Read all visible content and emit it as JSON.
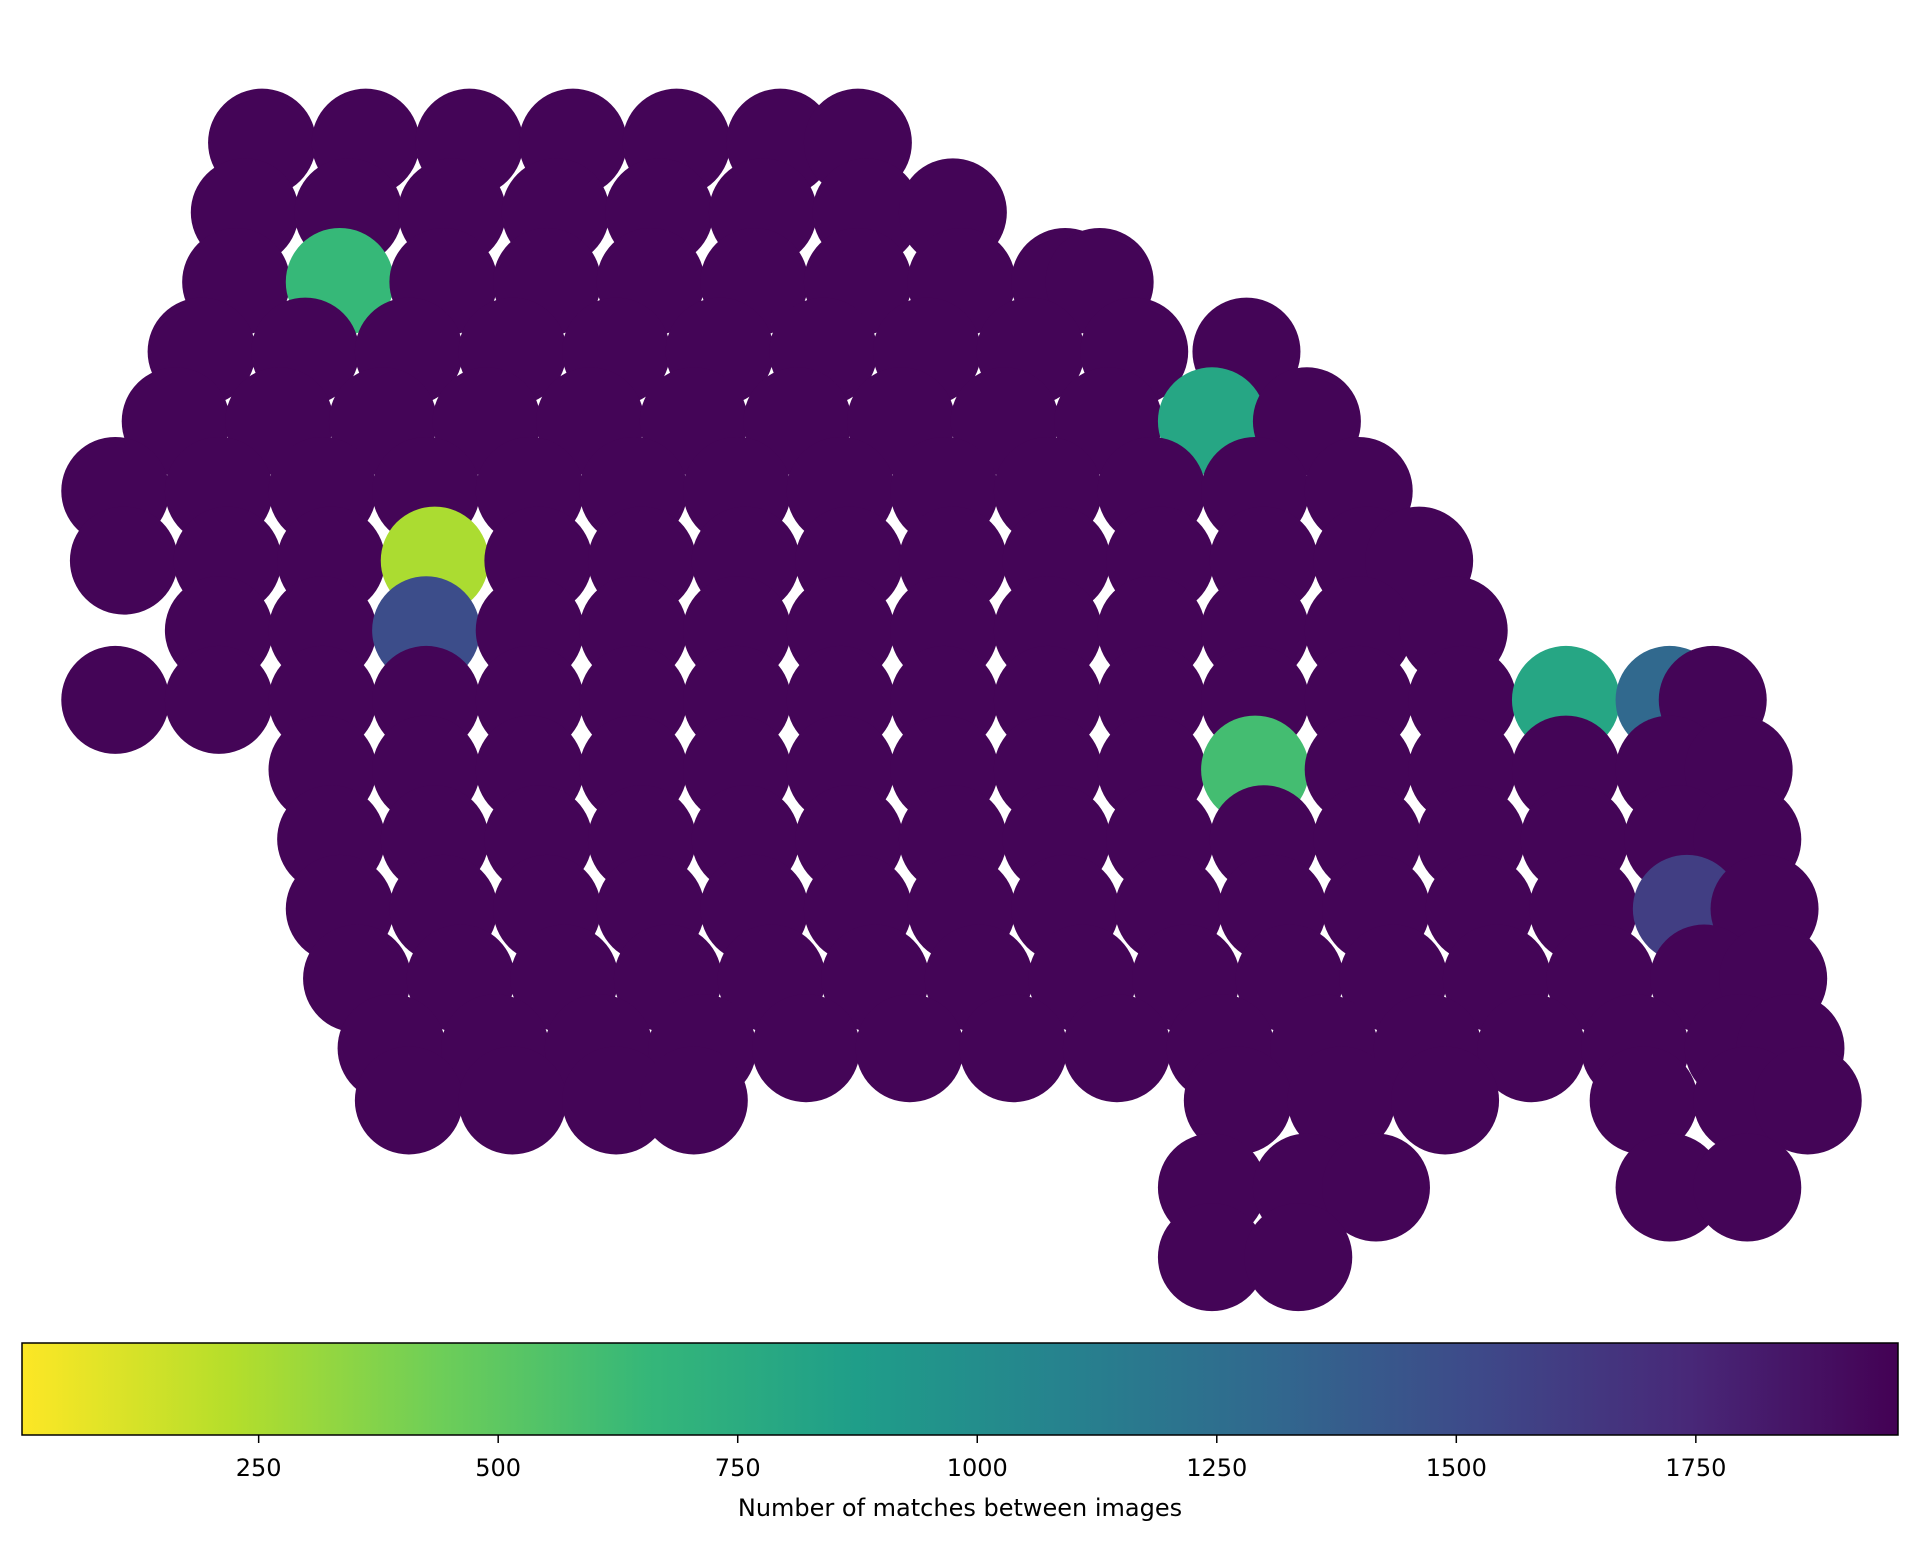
{
  "chart_data": {
    "type": "scatter",
    "colorbar_label": "Number of matches between images",
    "xlim": [
      0,
      1000
    ],
    "ylim": [
      0,
      700
    ],
    "clim": [
      3,
      1961
    ],
    "colorbar_ticks": [
      250,
      500,
      750,
      1000,
      1250,
      1500,
      1750
    ],
    "colormap": [
      "#fde725",
      "#b5de2b",
      "#6ece58",
      "#35b779",
      "#1f9e89",
      "#26828e",
      "#31688e",
      "#3e4989",
      "#482878",
      "#440154"
    ],
    "x": [
      95,
      155,
      215,
      275,
      335,
      395,
      440,
      85,
      145,
      205,
      265,
      325,
      385,
      445,
      495,
      80,
      140,
      200,
      260,
      320,
      380,
      440,
      500,
      560,
      580,
      60,
      120,
      180,
      240,
      300,
      360,
      420,
      480,
      540,
      600,
      665,
      45,
      105,
      165,
      225,
      285,
      345,
      405,
      465,
      525,
      585,
      645,
      700,
      10,
      70,
      130,
      190,
      250,
      310,
      370,
      430,
      490,
      550,
      610,
      670,
      730,
      15,
      75,
      135,
      195,
      255,
      315,
      375,
      435,
      495,
      555,
      615,
      675,
      735,
      765,
      70,
      130,
      190,
      250,
      310,
      370,
      430,
      490,
      550,
      610,
      670,
      730,
      785,
      10,
      70,
      130,
      190,
      250,
      310,
      370,
      430,
      490,
      550,
      610,
      670,
      730,
      790,
      850,
      910,
      935,
      130,
      190,
      250,
      310,
      370,
      430,
      490,
      550,
      610,
      670,
      730,
      790,
      850,
      910,
      950,
      135,
      195,
      255,
      315,
      375,
      435,
      495,
      555,
      615,
      675,
      735,
      795,
      855,
      915,
      955,
      140,
      200,
      260,
      320,
      380,
      440,
      500,
      560,
      620,
      680,
      740,
      800,
      860,
      920,
      965,
      150,
      210,
      270,
      330,
      390,
      450,
      510,
      570,
      630,
      690,
      750,
      810,
      870,
      930,
      970,
      170,
      230,
      290,
      350,
      410,
      470,
      530,
      590,
      650,
      710,
      770,
      830,
      890,
      950,
      980,
      180,
      240,
      300,
      345,
      660,
      720,
      780,
      895,
      955,
      990,
      645,
      700,
      740,
      910,
      955,
      645,
      695
    ],
    "y": [
      660,
      660,
      660,
      660,
      660,
      660,
      660,
      620,
      620,
      620,
      620,
      620,
      620,
      620,
      620,
      580,
      580,
      580,
      580,
      580,
      580,
      580,
      580,
      580,
      580,
      540,
      540,
      540,
      540,
      540,
      540,
      540,
      540,
      540,
      540,
      540,
      500,
      500,
      500,
      500,
      500,
      500,
      500,
      500,
      500,
      500,
      500,
      500,
      460,
      460,
      460,
      460,
      460,
      460,
      460,
      460,
      460,
      460,
      460,
      460,
      460,
      420,
      420,
      420,
      420,
      420,
      420,
      420,
      420,
      420,
      420,
      420,
      420,
      420,
      420,
      380,
      380,
      380,
      380,
      380,
      380,
      380,
      380,
      380,
      380,
      380,
      380,
      380,
      340,
      340,
      340,
      340,
      340,
      340,
      340,
      340,
      340,
      340,
      340,
      340,
      340,
      340,
      340,
      340,
      340,
      300,
      300,
      300,
      300,
      300,
      300,
      300,
      300,
      300,
      300,
      300,
      300,
      300,
      300,
      300,
      260,
      260,
      260,
      260,
      260,
      260,
      260,
      260,
      260,
      260,
      260,
      260,
      260,
      260,
      260,
      220,
      220,
      220,
      220,
      220,
      220,
      220,
      220,
      220,
      220,
      220,
      220,
      220,
      220,
      220,
      180,
      180,
      180,
      180,
      180,
      180,
      180,
      180,
      180,
      180,
      180,
      180,
      180,
      180,
      180,
      140,
      140,
      140,
      140,
      140,
      140,
      140,
      140,
      140,
      140,
      140,
      140,
      140,
      140,
      140,
      110,
      110,
      110,
      110,
      110,
      110,
      110,
      110,
      110,
      110,
      60,
      60,
      60,
      60,
      60,
      20,
      20
    ],
    "c": [
      1940,
      1940,
      1940,
      1940,
      1940,
      1940,
      1940,
      1940,
      1940,
      1940,
      1940,
      1940,
      1940,
      1940,
      1940,
      1940,
      650,
      1940,
      1940,
      1940,
      1940,
      1940,
      1940,
      1940,
      1940,
      1940,
      1940,
      1940,
      1940,
      1940,
      1940,
      1940,
      1940,
      1940,
      1940,
      1940,
      1940,
      1940,
      1940,
      1940,
      1940,
      1940,
      1940,
      1940,
      1940,
      1940,
      800,
      1940,
      1940,
      1940,
      1940,
      1940,
      1940,
      1940,
      1940,
      1940,
      1940,
      1940,
      1940,
      1940,
      1940,
      1940,
      1940,
      1940,
      250,
      1940,
      1940,
      1940,
      1940,
      1940,
      1940,
      1940,
      1940,
      1940,
      1940,
      1940,
      1940,
      1500,
      1940,
      1940,
      1940,
      1940,
      1940,
      1940,
      1940,
      1940,
      1940,
      1940,
      1940,
      1940,
      1940,
      1940,
      1940,
      1940,
      1940,
      1940,
      1940,
      1940,
      1940,
      1940,
      1940,
      1940,
      800,
      1300,
      1940,
      1940,
      1940,
      1940,
      1940,
      1940,
      1940,
      1940,
      1940,
      1940,
      600,
      1940,
      1940,
      1940,
      1940,
      1940,
      1940,
      1940,
      1940,
      1940,
      1940,
      1940,
      1940,
      1940,
      1940,
      1940,
      1940,
      1940,
      1940,
      1940,
      1940,
      1940,
      1940,
      1940,
      1940,
      1940,
      1940,
      1940,
      1940,
      1940,
      1940,
      1940,
      1940,
      1940,
      1600,
      1940,
      1940,
      1940,
      1940,
      1940,
      1940,
      1940,
      1940,
      1940,
      1940,
      1940,
      1940,
      1940,
      1940,
      1940,
      1940,
      1940,
      1940,
      1940,
      1940,
      1940,
      1940,
      1940,
      1940,
      1940,
      1940,
      1940,
      1940,
      1940,
      1940,
      1940,
      1940,
      1940,
      1940,
      1940,
      1940,
      1940,
      1940,
      1940,
      1940,
      1940,
      1940,
      1940,
      1940,
      1940,
      1940,
      1940,
      1940
    ]
  }
}
